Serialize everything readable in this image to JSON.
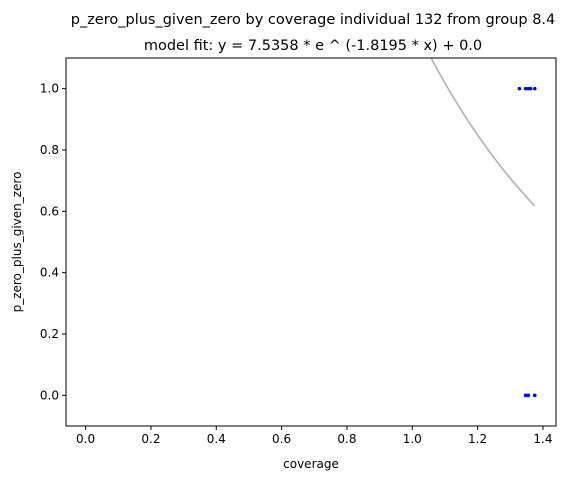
{
  "chart_data": {
    "type": "scatter",
    "title": "p_zero_plus_given_zero by coverage individual 132 from group 8.4",
    "subtitle": "model fit: y = 7.5358 * e ^ (-1.8195 * x) + 0.0",
    "xlabel": "coverage",
    "ylabel": "p_zero_plus_given_zero",
    "xlim": [
      -0.06,
      1.44
    ],
    "ylim": [
      -0.1,
      1.1
    ],
    "x_ticks": [
      "0.0",
      "0.2",
      "0.4",
      "0.6",
      "0.8",
      "1.0",
      "1.2",
      "1.4"
    ],
    "y_ticks": [
      "0.0",
      "0.2",
      "0.4",
      "0.6",
      "0.8",
      "1.0"
    ],
    "grid": false,
    "points": [
      {
        "x": 1.328,
        "y": 1.0
      },
      {
        "x": 1.347,
        "y": 1.0
      },
      {
        "x": 1.355,
        "y": 1.0
      },
      {
        "x": 1.362,
        "y": 1.0
      },
      {
        "x": 1.375,
        "y": 1.0
      },
      {
        "x": 1.347,
        "y": 0.0
      },
      {
        "x": 1.355,
        "y": 0.0
      },
      {
        "x": 1.375,
        "y": 0.0
      }
    ],
    "point_color": "#0000ff",
    "fit": {
      "a": 7.5358,
      "b": -1.8195,
      "c": 0.0,
      "x_range": [
        1.0,
        1.375
      ],
      "color": "#b0b0b0"
    }
  }
}
